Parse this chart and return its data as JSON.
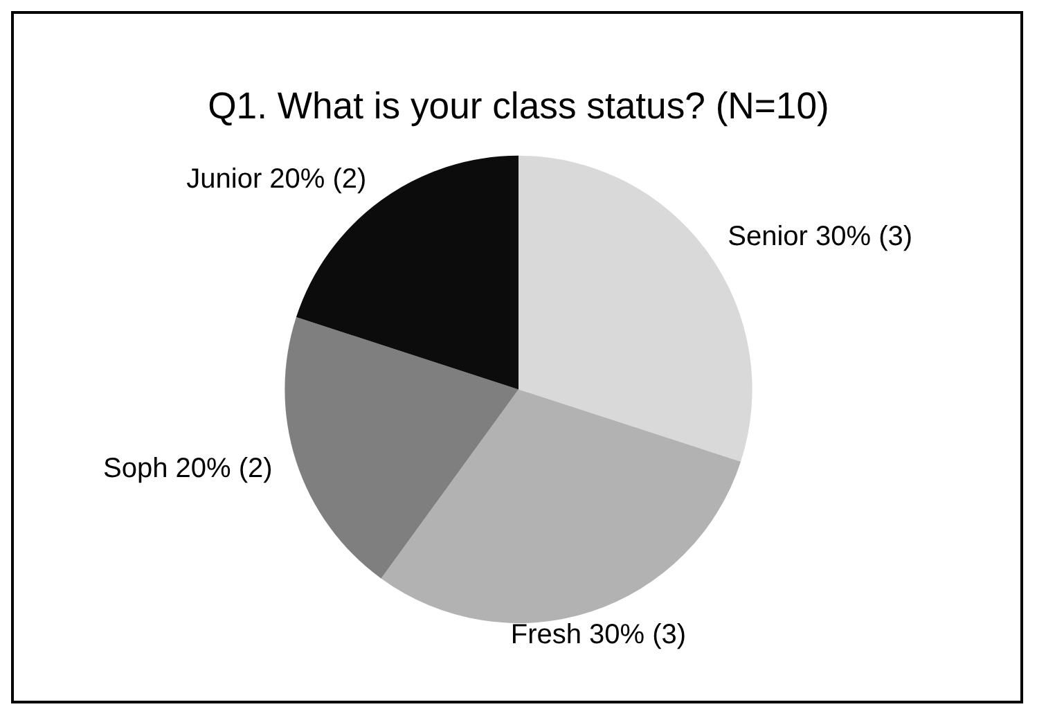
{
  "chart_data": {
    "type": "pie",
    "title": "Q1. What is your class status? (N=10)",
    "categories": [
      "Senior",
      "Fresh",
      "Soph",
      "Junior"
    ],
    "values": [
      30,
      30,
      20,
      20
    ],
    "value_labels": [
      "30% (3)",
      "30% (3)",
      "20% (2)",
      "20% (2)"
    ],
    "colors": [
      "#d9d9d9",
      "#b2b2b2",
      "#7f7f7f",
      "#0c0c0c"
    ],
    "legend": false
  }
}
